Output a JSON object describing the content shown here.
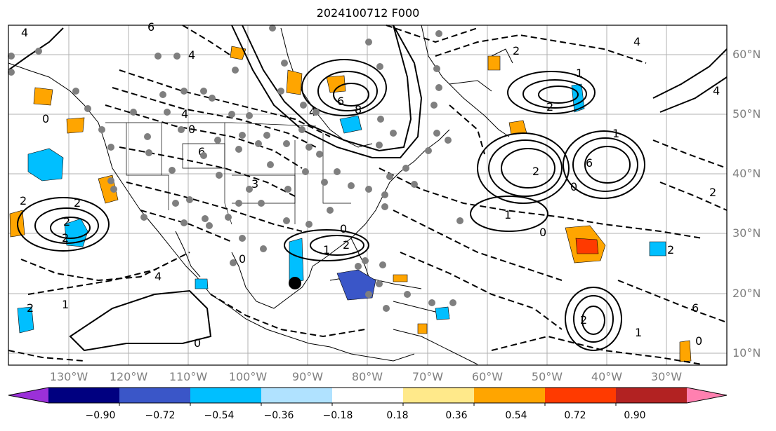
{
  "title": "2024100712 F000",
  "lat_labels": [
    "60°N",
    "50°N",
    "40°N",
    "30°N",
    "20°N",
    "10°N"
  ],
  "lon_labels": [
    "130°W",
    "120°W",
    "110°W",
    "100°W",
    "90°W",
    "80°W",
    "70°W",
    "60°W",
    "50°W",
    "40°W",
    "30°W"
  ],
  "colorbar": {
    "ticks": [
      "−0.90",
      "−0.72",
      "−0.54",
      "−0.36",
      "−0.18",
      "0.18",
      "0.36",
      "0.54",
      "0.72",
      "0.90"
    ],
    "colors": [
      "#9b30d9",
      "#000080",
      "#3a56c8",
      "#00bfff",
      "#b0e2ff",
      "#ffffff",
      "#ffe98a",
      "#ffa500",
      "#ff3a00",
      "#b22222",
      "#ff80b0"
    ]
  },
  "contour_labels": [
    "4",
    "6",
    "4",
    "0",
    "4",
    "2",
    "2",
    "4",
    "6",
    "8",
    "0",
    "2",
    "4",
    "4",
    "6",
    "1",
    "2",
    "1",
    "2",
    "0",
    "6",
    "3",
    "2",
    "1",
    "0",
    "2",
    "2",
    "4",
    "0",
    "1",
    "2",
    "2",
    "1",
    "6",
    "2",
    "1",
    "0",
    "0",
    "0",
    "2"
  ],
  "hurricane_marker": "black-dot"
}
